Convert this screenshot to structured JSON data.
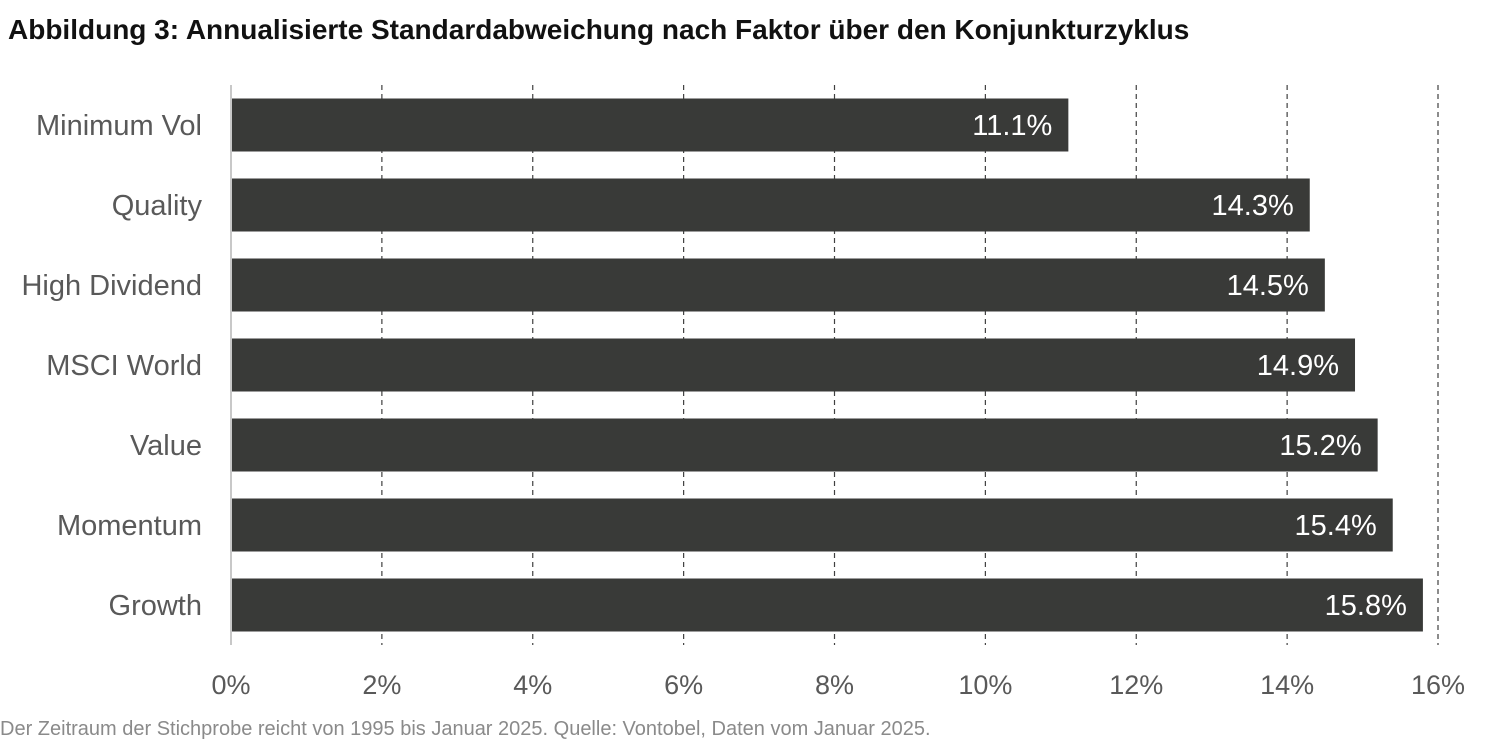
{
  "title": "Abbildung 3: Annualisierte Standardabweichung nach Faktor über den Konjunkturzyklus",
  "footer": "Der Zeitraum der Stichprobe reicht von 1995 bis Januar 2025. Quelle: Vontobel, Daten vom Januar 2025.",
  "colors": {
    "bar": "#393a38",
    "bar_label": "#ffffff",
    "category_label": "#595959",
    "tick_label": "#595959",
    "grid": "#404040",
    "axis": "#c8c8c8"
  },
  "chart_data": {
    "type": "bar",
    "orientation": "horizontal",
    "title": "Abbildung 3: Annualisierte Standardabweichung nach Faktor über den Konjunkturzyklus",
    "xlabel": "",
    "ylabel": "",
    "categories": [
      "Minimum Vol",
      "Quality",
      "High Dividend",
      "MSCI World",
      "Value",
      "Momentum",
      "Growth"
    ],
    "values": [
      11.1,
      14.3,
      14.5,
      14.9,
      15.2,
      15.4,
      15.8
    ],
    "data_labels": [
      "11.1%",
      "14.3%",
      "14.5%",
      "14.9%",
      "15.2%",
      "15.4%",
      "15.8%"
    ],
    "xlim": [
      0,
      16
    ],
    "x_ticks": [
      0,
      2,
      4,
      6,
      8,
      10,
      12,
      14,
      16
    ],
    "x_tick_labels": [
      "0%",
      "2%",
      "4%",
      "6%",
      "8%",
      "10%",
      "12%",
      "14%",
      "16%"
    ],
    "grid": "vertical dashed",
    "legend": "none"
  }
}
